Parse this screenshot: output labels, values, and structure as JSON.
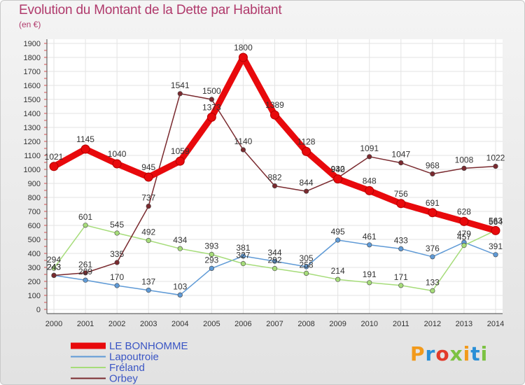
{
  "header": {
    "title": "Evolution du Montant de la Dette par Habitant",
    "subtitle": "(en €)"
  },
  "logo": {
    "text": "Proxiti",
    "colors": [
      "#f29a1b",
      "#2a8fd6",
      "#e23a2a",
      "#7cc242",
      "#f29a1b",
      "#2a8fd6",
      "#7cc242"
    ]
  },
  "chart_data": {
    "type": "line",
    "x": [
      "2000",
      "2001",
      "2002",
      "2003",
      "2004",
      "2005",
      "2006",
      "2007",
      "2008",
      "2009",
      "2010",
      "2011",
      "2012",
      "2013",
      "2014"
    ],
    "ylim": [
      0,
      1900
    ],
    "yticks": [
      0,
      100,
      200,
      300,
      400,
      500,
      600,
      700,
      800,
      900,
      1000,
      1100,
      1200,
      1300,
      1400,
      1500,
      1600,
      1700,
      1800,
      1900
    ],
    "grid": true,
    "legend_position": "bottom-left",
    "series": [
      {
        "name": "LE BONHOMME",
        "color": "#e8090c",
        "emphasis": true,
        "values": [
          1021,
          1145,
          1040,
          945,
          1059,
          1373,
          1800,
          1389,
          1128,
          932,
          848,
          756,
          691,
          628,
          563
        ]
      },
      {
        "name": "Lapoutroie",
        "color": "#5f9ad6",
        "emphasis": false,
        "values": [
          243,
          209,
          170,
          137,
          103,
          293,
          381,
          344,
          305,
          495,
          461,
          433,
          376,
          479,
          391
        ]
      },
      {
        "name": "Fréland",
        "color": "#a6dc7a",
        "emphasis": false,
        "values": [
          294,
          601,
          545,
          492,
          434,
          393,
          327,
          292,
          258,
          214,
          191,
          171,
          133,
          457,
          564
        ]
      },
      {
        "name": "Orbey",
        "color": "#7a2a2f",
        "emphasis": false,
        "values": [
          243,
          261,
          335,
          737,
          1541,
          1500,
          1140,
          882,
          844,
          940,
          1091,
          1047,
          968,
          1008,
          1022
        ]
      }
    ]
  }
}
